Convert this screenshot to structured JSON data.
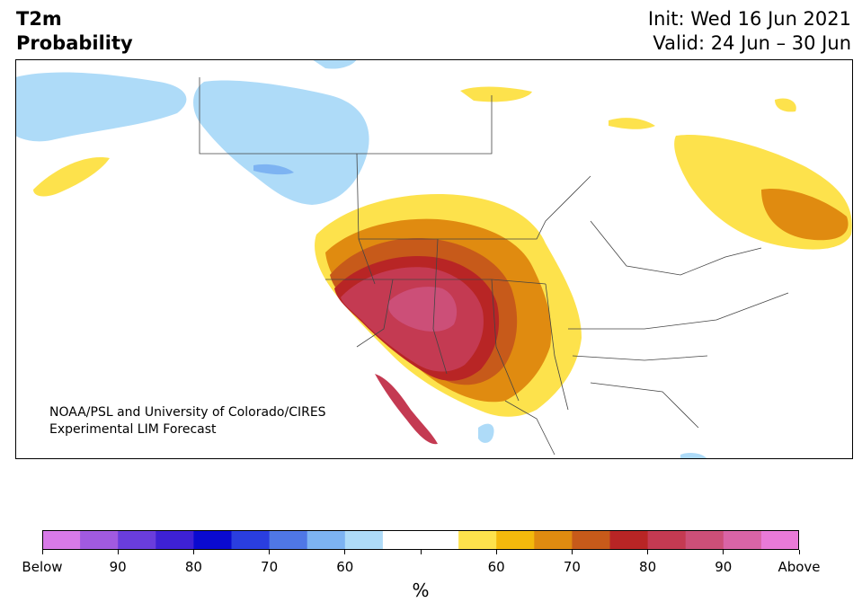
{
  "title": {
    "line1": "T2m",
    "line2": "Probability"
  },
  "dates": {
    "init": "Init: Wed 16 Jun 2021",
    "valid": "Valid: 24 Jun – 30 Jun"
  },
  "credit": {
    "line1": "NOAA/PSL and University of Colorado/CIRES",
    "line2": "Experimental LIM Forecast"
  },
  "legend": {
    "units": "%",
    "colors": [
      "#d87ae8",
      "#a15ae0",
      "#6a3ddc",
      "#3e21d5",
      "#0a0ad0",
      "#2a3ee0",
      "#4f77e6",
      "#7db3f2",
      "#aedbf8",
      "#ffffff",
      "#ffffff",
      "#fde24c",
      "#f4b90c",
      "#e08b10",
      "#c75a1a",
      "#b82525",
      "#c43a52",
      "#cc4f78",
      "#d964a6",
      "#e97ad8"
    ],
    "ticks": [
      {
        "label": "Below",
        "pos": 0
      },
      {
        "label": "90",
        "pos": 2
      },
      {
        "label": "80",
        "pos": 4
      },
      {
        "label": "70",
        "pos": 6
      },
      {
        "label": "60",
        "pos": 8
      },
      {
        "label": "",
        "pos": 10
      },
      {
        "label": "60",
        "pos": 12
      },
      {
        "label": "70",
        "pos": 14
      },
      {
        "label": "80",
        "pos": 16
      },
      {
        "label": "90",
        "pos": 18
      },
      {
        "label": "Above",
        "pos": 20
      }
    ]
  },
  "map": {
    "type": "probability-shading",
    "land_color": "#ffffff",
    "border_color": "#444444",
    "regions": [
      {
        "name": "above-20",
        "color": "#fde24c"
      },
      {
        "name": "above-10",
        "color": "#f4b90c"
      },
      {
        "name": "above-30",
        "color": "#e08b10"
      },
      {
        "name": "above-40",
        "color": "#c75a1a"
      },
      {
        "name": "above-50",
        "color": "#b82525"
      },
      {
        "name": "above-60",
        "color": "#c43a52"
      },
      {
        "name": "above-70",
        "color": "#cc4f78"
      },
      {
        "name": "below-60",
        "color": "#aedbf8"
      },
      {
        "name": "below-70",
        "color": "#7db3f2"
      }
    ]
  }
}
